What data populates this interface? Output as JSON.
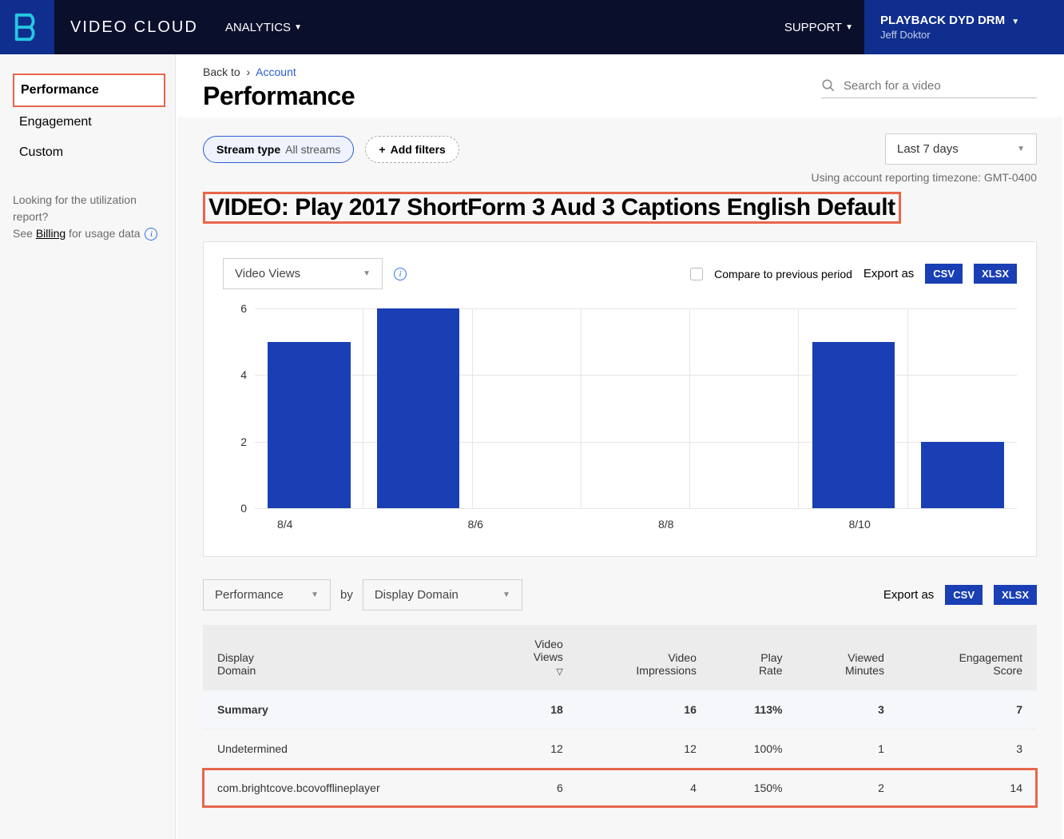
{
  "header": {
    "brand": "VIDEO CLOUD",
    "nav_analytics": "ANALYTICS",
    "support": "SUPPORT",
    "account_name": "PLAYBACK DYD DRM",
    "account_user": "Jeff Doktor"
  },
  "sidebar": {
    "items": [
      {
        "label": "Performance",
        "active": true
      },
      {
        "label": "Engagement",
        "active": false
      },
      {
        "label": "Custom",
        "active": false
      }
    ],
    "note_line1": "Looking for the utilization report?",
    "note_line2a": "See ",
    "note_link": "Billing",
    "note_line2b": " for usage data"
  },
  "breadcrumb": {
    "back_to": "Back to",
    "sep": "›",
    "account": "Account"
  },
  "page_title": "Performance",
  "search_placeholder": "Search for a video",
  "filters": {
    "stream_label": "Stream type",
    "stream_value": "All streams",
    "add_filters": "Add filters",
    "date_range": "Last 7 days",
    "tz_note": "Using account reporting timezone: GMT-0400"
  },
  "video_title": "VIDEO: Play 2017 ShortForm 3 Aud 3 Captions English Default",
  "chart": {
    "metric_select": "Video Views",
    "compare_label": "Compare to previous period",
    "export_label": "Export as",
    "csv": "CSV",
    "xlsx": "XLSX",
    "y_ticks": [
      0,
      2,
      4,
      6
    ],
    "y_max": 6,
    "bar_color": "#1a3fb5",
    "bars": [
      {
        "value": 5
      },
      {
        "value": 6
      },
      {
        "value": 0
      },
      {
        "value": 0
      },
      {
        "value": 0
      },
      {
        "value": 5
      },
      {
        "value": 2
      }
    ],
    "x_labels": [
      "8/4",
      "8/6",
      "8/8",
      "8/10"
    ]
  },
  "table_controls": {
    "primary_select": "Performance",
    "by": "by",
    "secondary_select": "Display Domain",
    "export_label": "Export as",
    "csv": "CSV",
    "xlsx": "XLSX"
  },
  "table": {
    "columns": [
      "Display Domain",
      "Video Views",
      "Video Impressions",
      "Play Rate",
      "Viewed Minutes",
      "Engagement Score"
    ],
    "sort_col_index": 1,
    "rows": [
      {
        "cells": [
          "Summary",
          "18",
          "16",
          "113%",
          "3",
          "7"
        ],
        "summary": true,
        "highlight": false
      },
      {
        "cells": [
          "Undetermined",
          "12",
          "12",
          "100%",
          "1",
          "3"
        ],
        "summary": false,
        "highlight": false
      },
      {
        "cells": [
          "com.brightcove.bcovofflineplayer",
          "6",
          "4",
          "150%",
          "2",
          "14"
        ],
        "summary": false,
        "highlight": true
      }
    ]
  }
}
